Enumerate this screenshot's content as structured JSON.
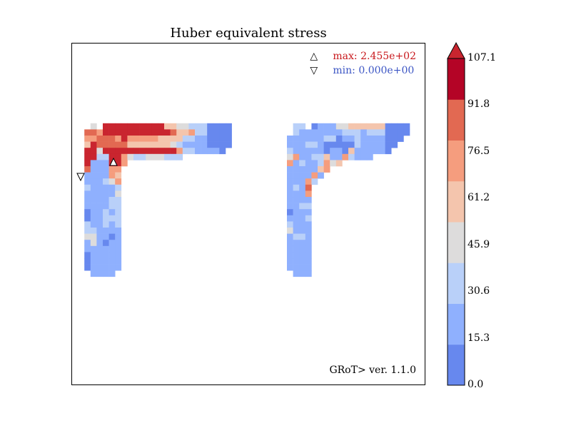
{
  "chart_data": {
    "type": "heatmap",
    "title": "Huber equivalent stress",
    "legend": {
      "max_symbol": "△",
      "max_label": "max: 2.455e+02",
      "min_symbol": "▽",
      "min_label": "min: 0.000e+00",
      "position": "top-right"
    },
    "watermark": "GRoT> ver. 1.1.0",
    "colorbar": {
      "ticks": [
        "107.1",
        "91.8",
        "76.5",
        "61.2",
        "45.9",
        "30.6",
        "15.3",
        "0.0"
      ],
      "levels": [
        0.0,
        15.3,
        30.6,
        45.9,
        61.2,
        76.5,
        91.8,
        107.1
      ],
      "colors": [
        "#6788ee",
        "#8fb0fe",
        "#b9d0f9",
        "#dddcdc",
        "#f4c5ad",
        "#f59d7e",
        "#e26952",
        "#b40426"
      ],
      "extend": "max",
      "overflow_color": "#c9252f"
    },
    "grid_cols": 54,
    "grid_rows": 52,
    "palette": {
      "a": "#6788ee",
      "b": "#8fb0fe",
      "c": "#b9d0f9",
      "d": "#dddcdc",
      "e": "#f4c5ad",
      "f": "#f59d7e",
      "g": "#e26952",
      "h": "#c9252f"
    },
    "field": [
      "......................................................",
      "......................................................",
      "......................................................",
      "......................................................",
      "......................................................",
      "......................................................",
      "......................................................",
      "......................................................",
      "......................................................",
      "......................................................",
      "......................................................",
      "......................................................",
      "......................................................",
      "...d.hhhhhhhhhheeddcccaaaa..........cc.abbbddeeeeeeaaaa",
      "..ggfhhhhhhhhhhhgeefccaaaa..........cbbbbbbbcccbcccaaaa",
      "..ffgggfhfffffeeeeccbbaaaa.........bbbbbbccabbcbbbbaaa.",
      "..ehgggggeeeeeeedcbbbbaaaa.........bbbccbaaaaacbbbbaa..",
      "..hhdhhhhhhhhhhhhfccbbbba..........cbbbbbabbaebbbbba...",
      "..hhcchhfdccdddccc.................dfbbccebbfcbbb......",
      "..hbbbhhf..........................fbcbbcfde...........",
      "..gbbbff...........................bbbbbef.............",
      "..bbbbfe...........................bbbbfb.............",
      "..bbbcdf...........................bbbfc..............",
      "..cbbbbc...........................bcbg...............",
      "..bbbbbd...........................bbbf...............",
      "..bbbbcc...........................bbbb...............",
      "..bbbbcc...........................bbcc...............",
      "..abbcbc...........................abbb...............",
      "..abbccc...........................bbbc...............",
      "..cbbcbc...........................cbbb...............",
      "..ccbbbb...........................dbbb...............",
      "..ddbbab...........................bccb...............",
      "..bdbabb...........................bbbb...............",
      "..bbbbbb...........................bbbb...............",
      "..abbbbb...........................bbbb...............",
      "..abbbbb...........................bbbb...............",
      "..abbbbb...........................bbbb...............",
      "...bbbb.............................bbb...............",
      "......................................................",
      "......................................................",
      "......................................................",
      "......................................................",
      "......................................................",
      "......................................................",
      "......................................................",
      "......................................................",
      "......................................................",
      "......................................................",
      "......................................................",
      "......................................................",
      "......................................................",
      "......................................................"
    ]
  }
}
